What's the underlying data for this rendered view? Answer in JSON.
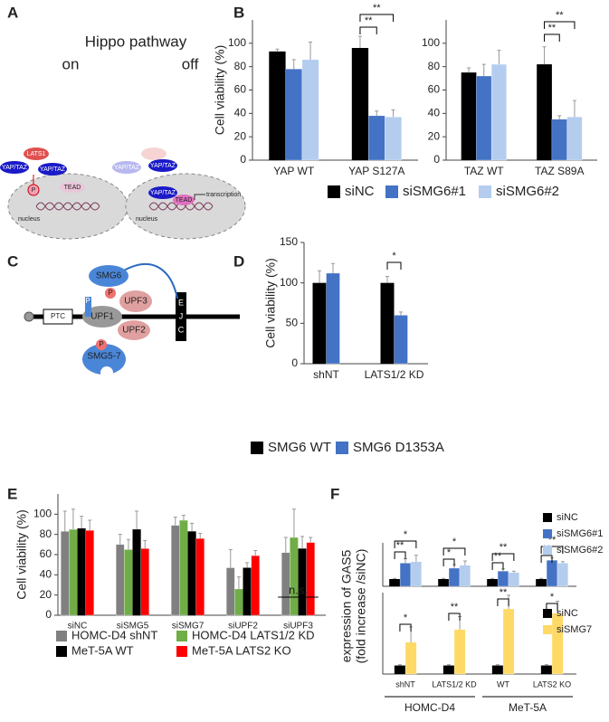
{
  "panel_labels": [
    "A",
    "B",
    "C",
    "D",
    "E",
    "F"
  ],
  "diagrams": {
    "A": {
      "title": "Hippo pathway",
      "on": "on",
      "off": "off",
      "yap": "YAP/TAZ",
      "lats": "LATS1",
      "tead": "TEAD",
      "nucleus": "nucleus",
      "transcription": "transcription",
      "p": "P"
    },
    "C": {
      "ptc": "PTC",
      "smg6": "SMG6",
      "upf1": "UPF1",
      "upf3": "UPF3",
      "upf2": "UPF2",
      "smg57": "SMG5-7",
      "p": "P",
      "ejc": [
        "E",
        "J",
        "C"
      ]
    }
  },
  "chart_data": [
    {
      "type": "bar",
      "ylabel": "Cell viability (%)",
      "categories": [
        "YAP WT",
        "YAP S127A"
      ],
      "ylim": [
        0,
        120
      ],
      "yticks": [
        0,
        20,
        40,
        60,
        80,
        100
      ],
      "series": [
        {
          "name": "siNC",
          "color": "#000000",
          "values": [
            93,
            96
          ],
          "errors": [
            2,
            10
          ]
        },
        {
          "name": "siSMG6#1",
          "color": "#4472c4",
          "values": [
            78,
            38
          ],
          "errors": [
            8,
            4
          ]
        },
        {
          "name": "siSMG6#2",
          "color": "#b4cdee",
          "values": [
            86,
            37
          ],
          "errors": [
            15,
            6
          ]
        }
      ],
      "annotations": [
        "**",
        "**"
      ]
    },
    {
      "type": "bar",
      "categories": [
        "TAZ WT",
        "TAZ S89A"
      ],
      "ylim": [
        0,
        120
      ],
      "yticks": [
        0,
        20,
        40,
        60,
        80,
        100
      ],
      "series": [
        {
          "color": "#000000",
          "values": [
            75,
            82
          ],
          "errors": [
            4,
            15
          ]
        },
        {
          "color": "#4472c4",
          "values": [
            72,
            35
          ],
          "errors": [
            10,
            3
          ]
        },
        {
          "color": "#b4cdee",
          "values": [
            82,
            37
          ],
          "errors": [
            12,
            14
          ]
        }
      ],
      "annotations": [
        "**",
        "**"
      ]
    },
    {
      "type": "bar",
      "ylabel": "Cell viability (%)",
      "categories": [
        "shNT",
        "LATS1/2 KD"
      ],
      "ylim": [
        0,
        150
      ],
      "yticks": [
        0,
        50,
        100,
        150
      ],
      "series": [
        {
          "name": "SMG6 WT",
          "color": "#000000",
          "values": [
            100,
            100
          ],
          "errors": [
            15,
            8
          ]
        },
        {
          "name": "SMG6 D1353A",
          "color": "#4472c4",
          "values": [
            112,
            60
          ],
          "errors": [
            12,
            4
          ]
        }
      ],
      "annotations": [
        "*"
      ]
    },
    {
      "type": "bar",
      "ylabel": "Cell viability (%)",
      "categories": [
        "siNC",
        "siSMG5",
        "siSMG7",
        "siUPF2",
        "siUPF3"
      ],
      "ylim": [
        0,
        120
      ],
      "yticks": [
        0,
        20,
        40,
        60,
        80,
        100
      ],
      "series": [
        {
          "name": "HOMC-D4 shNT",
          "color": "#808080",
          "values": [
            83,
            70,
            89,
            47,
            62
          ],
          "errors": [
            20,
            10,
            8,
            18,
            15
          ]
        },
        {
          "name": "HOMC-D4 LATS1/2 KD",
          "color": "#70ad47",
          "values": [
            85,
            65,
            94,
            26,
            77
          ],
          "errors": [
            20,
            10,
            5,
            12,
            28
          ]
        },
        {
          "name": "MeT-5A WT",
          "color": "#000000",
          "values": [
            86,
            85,
            83,
            47,
            66
          ],
          "errors": [
            12,
            18,
            8,
            5,
            12
          ]
        },
        {
          "name": "MeT-5A LATS2 KO",
          "color": "#ff0000",
          "values": [
            84,
            66,
            76,
            59,
            72
          ],
          "errors": [
            10,
            8,
            5,
            5,
            5
          ]
        }
      ],
      "annotations": [
        "n.s."
      ]
    },
    {
      "type": "bar",
      "ylabel": [
        "expression of GAS5",
        "(fold increase /siNC)"
      ],
      "ylim": [
        0,
        6
      ],
      "series": [
        {
          "name": "siNC",
          "color": "#000000",
          "values": [
            1,
            1,
            1,
            1
          ],
          "errors": [
            0.1,
            0.1,
            0.1,
            0.1
          ]
        },
        {
          "name": "siSMG6#1",
          "color": "#4472c4",
          "values": [
            3.2,
            2.5,
            2.1,
            3.6
          ],
          "errors": [
            0.6,
            0.5,
            0.3,
            0.3
          ]
        },
        {
          "name": "siSMG6#2",
          "color": "#b4cdee",
          "values": [
            3.4,
            2.9,
            1.9,
            3.2
          ],
          "errors": [
            0.9,
            0.6,
            0.2,
            0.2
          ]
        }
      ],
      "annotations": [
        "**",
        "*",
        "*",
        "*",
        "**",
        "**",
        "**",
        "**"
      ]
    },
    {
      "type": "bar",
      "categories": [
        "shNT",
        "LATS1/2 KD",
        "WT",
        "LATS2 KO"
      ],
      "groups": [
        "HOMC-D4",
        "MeT-5A"
      ],
      "ylim": [
        0,
        9.5
      ],
      "series": [
        {
          "name": "siNC",
          "color": "#000000",
          "values": [
            1,
            1,
            1,
            1
          ],
          "errors": [
            0.1,
            0.1,
            0.1,
            0.1
          ]
        },
        {
          "name": "siSMG7",
          "color": "#ffd966",
          "values": [
            3.7,
            5.2,
            7.6,
            7.1
          ],
          "errors": [
            1.8,
            1.5,
            1.6,
            1.4
          ]
        }
      ],
      "annotations": [
        "*",
        "**",
        "**",
        "*"
      ]
    }
  ]
}
